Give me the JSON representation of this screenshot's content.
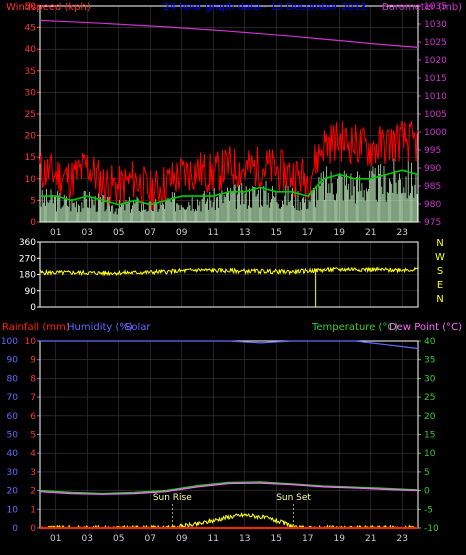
{
  "title": "24 hour graph data - 12 December 2013",
  "colors": {
    "background": "#000000",
    "frame": "#ffffff",
    "grid": "#3a3a3a",
    "wind": "#ff0000",
    "avg_wind": "#00cc00",
    "gust_base": "#ccffcc",
    "barometer": "#cc33cc",
    "direction": "#ffff00",
    "compass": "#ffff00",
    "rainfall": "#ff2200",
    "humidity": "#6666ff",
    "solar": "#ffff00",
    "temperature": "#33cc33",
    "dewpoint": "#ff66ff",
    "title": "#0000ff",
    "tick_text": "#ff3333",
    "hour_text": "#cccccc",
    "annot": "#ffff99"
  },
  "hours": [
    "01",
    "03",
    "05",
    "07",
    "09",
    "11",
    "13",
    "15",
    "17",
    "19",
    "21",
    "23"
  ],
  "chart_data": [
    {
      "type": "line",
      "name": "wind-panel",
      "left_axis": {
        "label": "Windspeed (kph)",
        "range": [
          0,
          50
        ],
        "ticks": [
          "0",
          "5",
          "10",
          "15",
          "20",
          "25",
          "30",
          "35",
          "40",
          "45",
          "50"
        ]
      },
      "right_axis": {
        "label": "Barometer (mb)",
        "range": [
          975,
          1035
        ],
        "ticks": [
          "975",
          "980",
          "985",
          "990",
          "995",
          "1000",
          "1005",
          "1010",
          "1015",
          "1020",
          "1025",
          "1030",
          "1035"
        ]
      },
      "x_range": [
        0,
        24
      ],
      "series": [
        {
          "name": "Windspeed",
          "x": [
            0,
            1,
            2,
            3,
            4,
            5,
            6,
            7,
            8,
            9,
            10,
            11,
            12,
            13,
            14,
            15,
            16,
            17,
            18,
            19,
            20,
            21,
            22,
            23,
            24
          ],
          "values": [
            12,
            11,
            10,
            13,
            9,
            8,
            10,
            7,
            9,
            11,
            12,
            11,
            13,
            12,
            13,
            12,
            11,
            10,
            18,
            19,
            18,
            17,
            18,
            19,
            18
          ]
        },
        {
          "name": "Average",
          "x": [
            0,
            1,
            2,
            3,
            4,
            5,
            6,
            7,
            8,
            9,
            10,
            11,
            12,
            13,
            14,
            15,
            16,
            17,
            18,
            19,
            20,
            21,
            22,
            23,
            24
          ],
          "values": [
            6,
            6,
            5,
            6,
            5,
            4,
            5,
            4,
            5,
            6,
            6,
            6,
            7,
            7,
            8,
            7,
            7,
            6,
            10,
            11,
            10,
            10,
            11,
            12,
            11
          ]
        },
        {
          "name": "Barometer",
          "x": [
            0,
            2,
            4,
            6,
            8,
            10,
            12,
            14,
            16,
            18,
            20,
            22,
            24
          ],
          "values": [
            1031,
            1030.6,
            1030.2,
            1029.7,
            1029.2,
            1028.6,
            1028.0,
            1027.3,
            1026.6,
            1025.8,
            1025.0,
            1024.2,
            1023.5
          ]
        }
      ]
    },
    {
      "type": "line",
      "name": "direction-panel",
      "left_axis": {
        "range": [
          0,
          360
        ],
        "ticks": [
          "0",
          "90",
          "180",
          "270",
          "360"
        ]
      },
      "right_axis": {
        "labels": [
          "N",
          "W",
          "S",
          "E",
          "N"
        ]
      },
      "x_range": [
        0,
        24
      ],
      "series": [
        {
          "name": "Wind Direction",
          "x": [
            0,
            2,
            4,
            6,
            8,
            10,
            12,
            14,
            16,
            18,
            20,
            22,
            24
          ],
          "values": [
            190,
            190,
            188,
            190,
            195,
            205,
            200,
            198,
            195,
            205,
            210,
            205,
            208
          ]
        }
      ]
    },
    {
      "type": "line",
      "name": "temp-panel",
      "left_axis": {
        "labels": [
          "Rainfall (mm)",
          "Humidity (%)",
          "Solar"
        ],
        "range": [
          0,
          100
        ],
        "ticks": [
          "0",
          "10",
          "20",
          "30",
          "40",
          "50",
          "60",
          "70",
          "80",
          "90",
          "100"
        ]
      },
      "left_axis_inner": {
        "range": [
          0,
          10
        ],
        "ticks": [
          "0",
          "1",
          "2",
          "3",
          "4",
          "5",
          "6",
          "7",
          "8",
          "9",
          "10"
        ]
      },
      "right_axis": {
        "labels": [
          "Temperature (°C)",
          "Dew Point (°C)"
        ],
        "range": [
          -10,
          40
        ],
        "ticks": [
          "-10",
          "-5",
          "0",
          "5",
          "10",
          "15",
          "20",
          "25",
          "30",
          "35",
          "40"
        ]
      },
      "annotations": [
        {
          "text": "Sun Rise",
          "x": 8.4
        },
        {
          "text": "Sun Set",
          "x": 16.1
        }
      ],
      "x_range": [
        0,
        24
      ],
      "series": [
        {
          "name": "Humidity",
          "x": [
            0,
            4,
            8,
            12,
            14,
            16,
            18,
            20,
            21,
            22,
            23,
            24
          ],
          "values": [
            100,
            100,
            100,
            100,
            99,
            100,
            100,
            100,
            99,
            98,
            97,
            96
          ]
        },
        {
          "name": "Temperature",
          "x": [
            0,
            2,
            4,
            6,
            8,
            10,
            12,
            14,
            16,
            18,
            20,
            22,
            24
          ],
          "values": [
            0,
            -0.5,
            -0.8,
            -0.5,
            0,
            1.3,
            2.2,
            2.3,
            1.8,
            1.2,
            0.9,
            0.6,
            0.2
          ]
        },
        {
          "name": "Dew Point",
          "x": [
            0,
            2,
            4,
            6,
            8,
            10,
            12,
            14,
            16,
            18,
            20,
            22,
            24
          ],
          "values": [
            -0.3,
            -0.8,
            -1.0,
            -0.8,
            -0.3,
            1.0,
            1.9,
            2.0,
            1.6,
            1.0,
            0.7,
            0.3,
            0
          ]
        },
        {
          "name": "Solar",
          "x": [
            0,
            8.4,
            9,
            10,
            11,
            12,
            13,
            14,
            15,
            16,
            16.1,
            24
          ],
          "values": [
            0,
            0,
            1,
            2,
            4,
            6,
            7,
            6,
            4,
            1,
            0,
            0
          ]
        },
        {
          "name": "Rainfall",
          "x": [
            0,
            24
          ],
          "values": [
            0,
            0
          ]
        }
      ]
    }
  ]
}
